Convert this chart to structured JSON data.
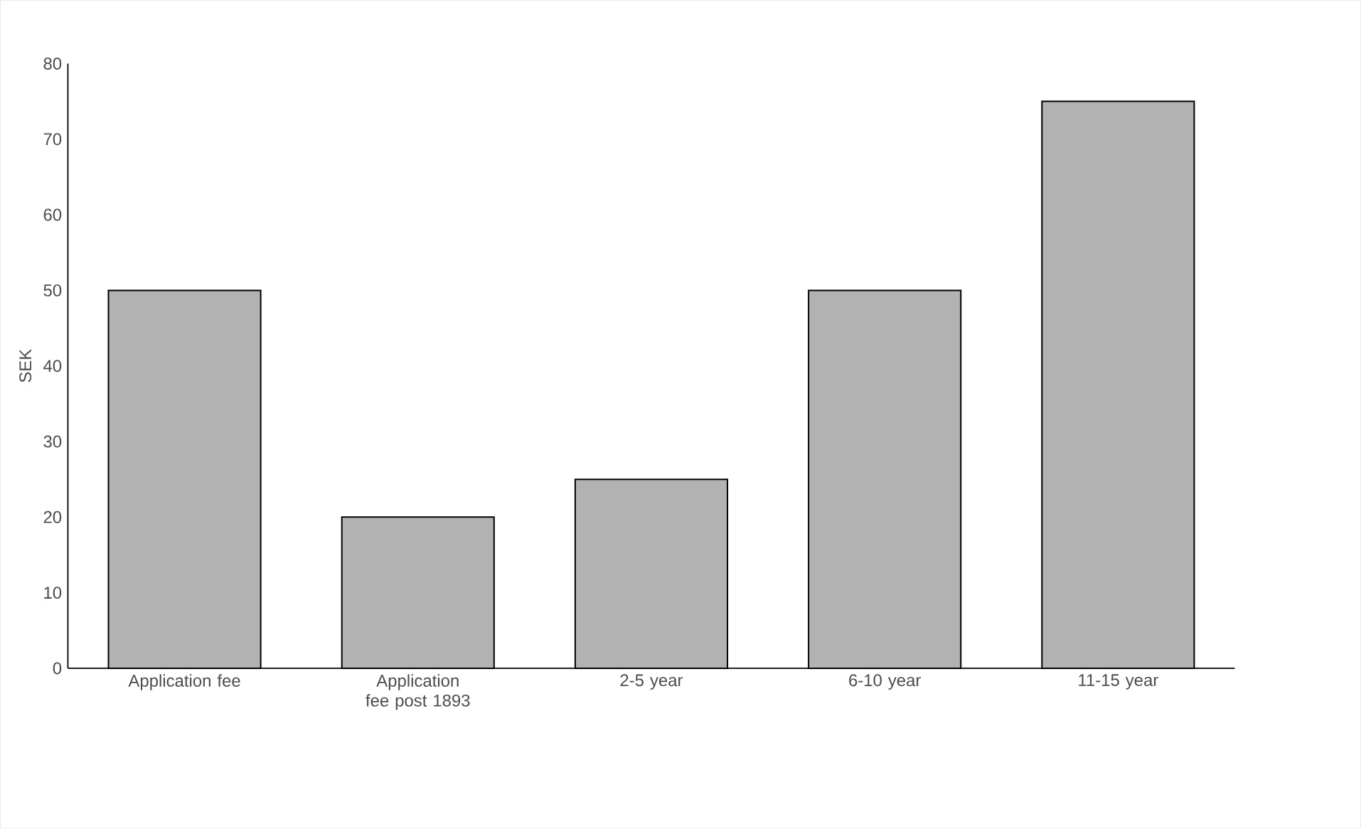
{
  "chart_data": {
    "type": "bar",
    "ylabel": "SEK",
    "categories": [
      "Application fee",
      "Application fee post 1893",
      "2-5 year",
      "6-10 year",
      "11-15 year"
    ],
    "values": [
      50,
      20,
      25,
      50,
      75
    ],
    "color": "#b2b2b2",
    "ylim": [
      0,
      80
    ],
    "yticks": [
      0,
      10,
      20,
      30,
      40,
      50,
      60,
      70,
      80
    ],
    "grid": false
  }
}
